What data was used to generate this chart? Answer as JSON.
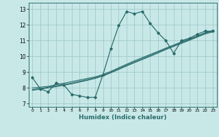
{
  "xlabel": "Humidex (Indice chaleur)",
  "ylabel": "",
  "xlim": [
    -0.5,
    23.5
  ],
  "ylim": [
    6.8,
    13.4
  ],
  "yticks": [
    7,
    8,
    9,
    10,
    11,
    12,
    13
  ],
  "xticks": [
    0,
    1,
    2,
    3,
    4,
    5,
    6,
    7,
    8,
    9,
    10,
    11,
    12,
    13,
    14,
    15,
    16,
    17,
    18,
    19,
    20,
    21,
    22,
    23
  ],
  "bg_color": "#c8e8e8",
  "grid_color": "#a0c8c8",
  "line_color": "#2a6b6b",
  "lines": [
    [
      8.65,
      7.95,
      7.75,
      8.3,
      8.2,
      7.6,
      7.5,
      7.4,
      7.4,
      8.85,
      10.5,
      11.95,
      12.85,
      12.7,
      12.85,
      12.1,
      11.5,
      11.0,
      10.2,
      11.0,
      11.15,
      11.4,
      11.6,
      11.6
    ],
    [
      8.0,
      8.05,
      8.1,
      8.2,
      8.3,
      8.4,
      8.5,
      8.6,
      8.7,
      8.85,
      9.05,
      9.28,
      9.5,
      9.72,
      9.92,
      10.12,
      10.32,
      10.52,
      10.72,
      10.92,
      11.1,
      11.3,
      11.5,
      11.65
    ],
    [
      7.9,
      7.97,
      8.05,
      8.13,
      8.22,
      8.31,
      8.42,
      8.53,
      8.65,
      8.8,
      9.0,
      9.22,
      9.44,
      9.65,
      9.85,
      10.06,
      10.27,
      10.48,
      10.68,
      10.88,
      11.07,
      11.27,
      11.47,
      11.6
    ],
    [
      7.85,
      7.92,
      8.0,
      8.08,
      8.17,
      8.26,
      8.37,
      8.48,
      8.6,
      8.76,
      8.96,
      9.17,
      9.39,
      9.6,
      9.8,
      10.0,
      10.21,
      10.43,
      10.63,
      10.82,
      11.02,
      11.22,
      11.42,
      11.55
    ]
  ]
}
